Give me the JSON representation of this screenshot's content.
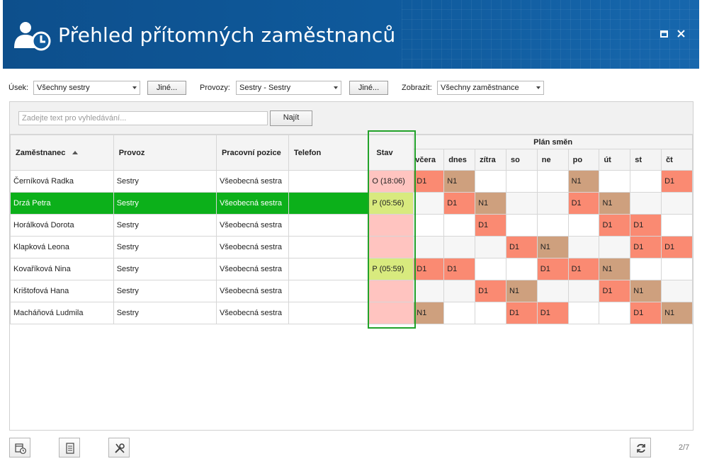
{
  "window": {
    "title": "Přehled přítomných zaměstnanců"
  },
  "filters": {
    "usek_label": "Úsek:",
    "usek_value": "Všechny sestry",
    "usek_other": "Jiné...",
    "provozy_label": "Provozy:",
    "provozy_value": "Sestry - Sestry",
    "provozy_other": "Jiné...",
    "zobrazit_label": "Zobrazit:",
    "zobrazit_value": "Všechny zaměstnance"
  },
  "search": {
    "placeholder": "Zadejte text pro vyhledávání...",
    "button": "Najít"
  },
  "grid": {
    "columns": {
      "employee": "Zaměstnanec",
      "provoz": "Provoz",
      "position": "Pracovní pozice",
      "phone": "Telefon",
      "stav": "Stav"
    },
    "plan_title": "Plán směn",
    "days": [
      "včera",
      "dnes",
      "zítra",
      "so",
      "ne",
      "po",
      "út",
      "st",
      "čt"
    ],
    "rows": [
      {
        "name": "Černíková Radka",
        "provoz": "Sestry",
        "position": "Všeobecná sestra",
        "phone": "",
        "stav": "O (18:06)",
        "stav_type": "out",
        "selected": false,
        "shifts": [
          "D1",
          "N1",
          "",
          "",
          "",
          "N1",
          "",
          "",
          "D1"
        ]
      },
      {
        "name": "Drzá Petra",
        "provoz": "Sestry",
        "position": "Všeobecná sestra",
        "phone": "",
        "stav": "P (05:56)",
        "stav_type": "in",
        "selected": true,
        "shifts": [
          "",
          "D1",
          "N1",
          "",
          "",
          "D1",
          "N1",
          "",
          ""
        ]
      },
      {
        "name": "Horálková Dorota",
        "provoz": "Sestry",
        "position": "Všeobecná sestra",
        "phone": "",
        "stav": "",
        "stav_type": "out",
        "selected": false,
        "shifts": [
          "",
          "",
          "D1",
          "",
          "",
          "",
          "D1",
          "D1",
          ""
        ]
      },
      {
        "name": "Klapková Leona",
        "provoz": "Sestry",
        "position": "Všeobecná sestra",
        "phone": "",
        "stav": "",
        "stav_type": "out",
        "selected": false,
        "shifts": [
          "",
          "",
          "",
          "D1",
          "N1",
          "",
          "",
          "D1",
          "D1"
        ]
      },
      {
        "name": "Kovaříková Nina",
        "provoz": "Sestry",
        "position": "Všeobecná sestra",
        "phone": "",
        "stav": "P (05:59)",
        "stav_type": "in",
        "selected": false,
        "shifts": [
          "D1",
          "D1",
          "",
          "",
          "D1",
          "D1",
          "N1",
          "",
          ""
        ]
      },
      {
        "name": "Krištofová Hana",
        "provoz": "Sestry",
        "position": "Všeobecná sestra",
        "phone": "",
        "stav": "",
        "stav_type": "out",
        "selected": false,
        "shifts": [
          "",
          "",
          "D1",
          "N1",
          "",
          "",
          "D1",
          "N1",
          ""
        ]
      },
      {
        "name": "Macháňová Ludmila",
        "provoz": "Sestry",
        "position": "Všeobecná sestra",
        "phone": "",
        "stav": "",
        "stav_type": "out",
        "selected": false,
        "shifts": [
          "N1",
          "",
          "",
          "D1",
          "D1",
          "",
          "",
          "D1",
          "N1"
        ]
      }
    ]
  },
  "footer": {
    "pager": "2/7"
  },
  "colors": {
    "header_bg": "#0f5a9c",
    "selected_row": "#0cb01a",
    "stav_out": "#ffc4c0",
    "stav_in": "#d8ea7e",
    "shift_D1": "#fa8a72",
    "shift_N1": "#cea07e",
    "highlight_frame": "#22a22a"
  },
  "icons": {
    "logo": "person-clock-icon",
    "maximize": "maximize-icon",
    "close": "close-icon",
    "tool1": "calendar-clock-icon",
    "tool2": "document-icon",
    "tool3": "tools-icon",
    "refresh": "refresh-icon"
  }
}
